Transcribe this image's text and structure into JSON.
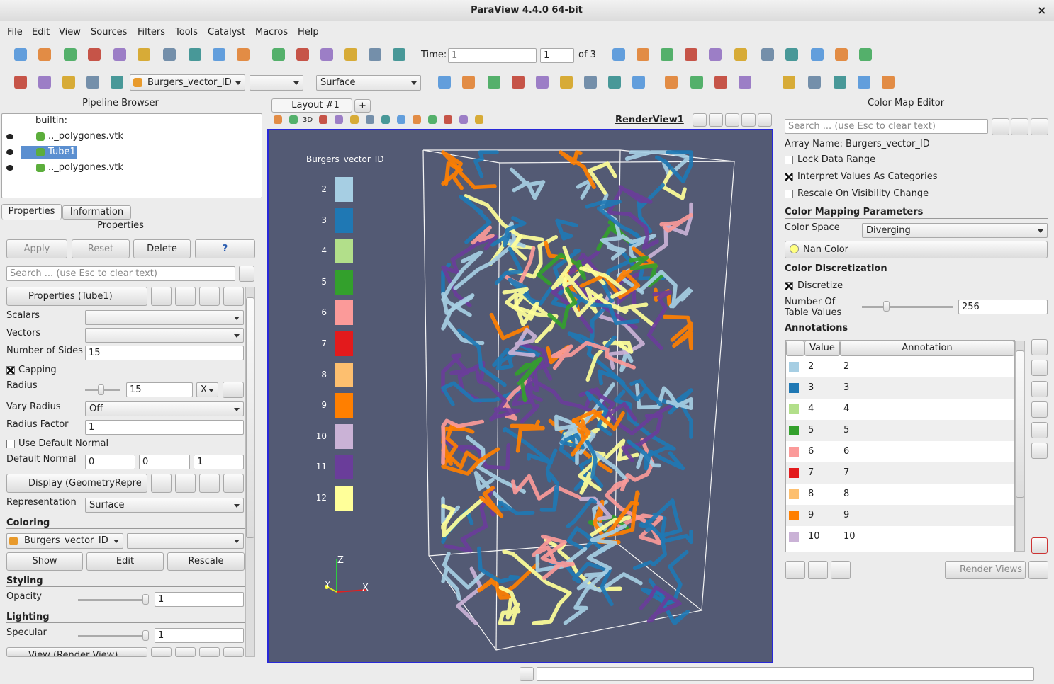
{
  "window": {
    "title": "ParaView 4.4.0 64-bit",
    "close": "×"
  },
  "menu": [
    "File",
    "Edit",
    "View",
    "Sources",
    "Filters",
    "Tools",
    "Catalyst",
    "Macros",
    "Help"
  ],
  "toolbar": {
    "time_label": "Time:",
    "time_value": "1",
    "time_step": "1",
    "time_of": "of 3",
    "array": "Burgers_vector_ID",
    "representation": "Surface"
  },
  "pipeline_browser": {
    "title": "Pipeline Browser",
    "items": [
      "builtin:",
      ".._polygones.vtk",
      "Tube1",
      ".._polygones.vtk"
    ]
  },
  "tabs": [
    "Properties",
    "Information"
  ],
  "properties": {
    "title": "Properties",
    "buttons": [
      "Apply",
      "Reset",
      "Delete",
      "?"
    ],
    "search": "Search ... (use Esc to clear text)",
    "section": "Properties (Tube1)",
    "scalars": "Scalars",
    "vectors": "Vectors",
    "number_of_sides": {
      "label": "Number of Sides",
      "value": "15"
    },
    "capping": "Capping",
    "radius": {
      "label": "Radius",
      "value": "15",
      "axis": "X"
    },
    "vary_radius": {
      "label": "Vary Radius",
      "value": "Off"
    },
    "radius_factor": {
      "label": "Radius Factor",
      "value": "1"
    },
    "use_default_normal": "Use Default Normal",
    "default_normal": {
      "label": "Default Normal",
      "values": [
        "0",
        "0",
        "1"
      ]
    },
    "display_section": "Display (GeometryRepre",
    "representation": {
      "label": "Representation",
      "value": "Surface"
    },
    "coloring": {
      "label": "Coloring",
      "array": "Burgers_vector_ID",
      "buttons": [
        "Show",
        "Edit",
        "Rescale"
      ]
    },
    "styling": {
      "label": "Styling",
      "opacity_label": "Opacity",
      "opacity": "1"
    },
    "lighting": {
      "label": "Lighting",
      "specular_label": "Specular",
      "specular": "1"
    },
    "view_section": "View (Render View)"
  },
  "layout": {
    "tab": "Layout #1",
    "new_tab": "+",
    "mode": "3D",
    "view": "RenderView1"
  },
  "render": {
    "legend": {
      "title": "Burgers_vector_ID",
      "entries": [
        {
          "label": "2",
          "color": "#a6cee3"
        },
        {
          "label": "3",
          "color": "#1f78b4"
        },
        {
          "label": "4",
          "color": "#b2df8a"
        },
        {
          "label": "5",
          "color": "#33a02c"
        },
        {
          "label": "6",
          "color": "#fb9a99"
        },
        {
          "label": "7",
          "color": "#e31a1c"
        },
        {
          "label": "8",
          "color": "#fdbf6f"
        },
        {
          "label": "9",
          "color": "#ff7f00"
        },
        {
          "label": "10",
          "color": "#cab2d6"
        },
        {
          "label": "11",
          "color": "#6a3d9a"
        },
        {
          "label": "12",
          "color": "#ffff99"
        }
      ]
    },
    "axes": {
      "z": "Z",
      "y": "Y",
      "x": "X"
    }
  },
  "color_map_editor": {
    "title": "Color Map Editor",
    "search": "Search ... (use Esc to clear text)",
    "array_name": "Array Name: Burgers_vector_ID",
    "lock": "Lock Data Range",
    "interpret": "Interpret Values As Categories",
    "rescale": "Rescale On Visibility Change",
    "mapping_title": "Color Mapping Parameters",
    "color_space_label": "Color Space",
    "color_space": "Diverging",
    "nan_color": "Nan Color",
    "discretization_title": "Color Discretization",
    "discretize": "Discretize",
    "table_values_label": "Number Of Table Values",
    "table_values": "256",
    "annotations_title": "Annotations",
    "columns": [
      "Value",
      "Annotation"
    ],
    "rows": [
      [
        "2",
        "2"
      ],
      [
        "3",
        "3"
      ],
      [
        "4",
        "4"
      ],
      [
        "5",
        "5"
      ],
      [
        "6",
        "6"
      ],
      [
        "7",
        "7"
      ],
      [
        "8",
        "8"
      ],
      [
        "9",
        "9"
      ],
      [
        "10",
        "10"
      ]
    ],
    "render_views": "Render Views"
  }
}
